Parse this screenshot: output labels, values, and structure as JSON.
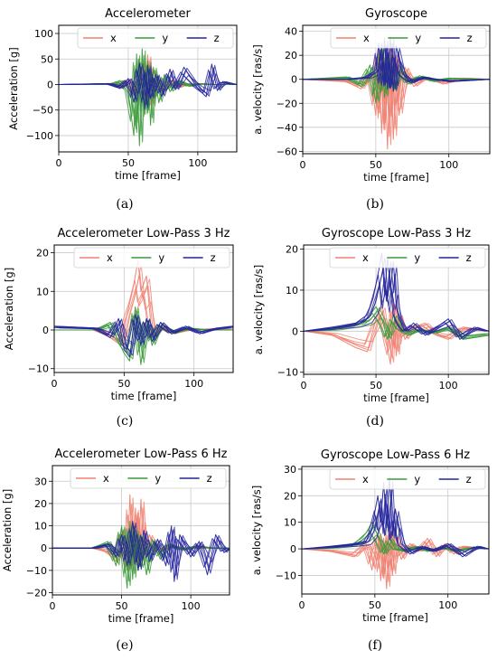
{
  "colors": {
    "x": "#F08070",
    "y": "#3A9A3A",
    "z": "#24249C"
  },
  "chart_data": [
    {
      "type": "line",
      "title": "Accelerometer",
      "xlabel": "time [frame]",
      "ylabel": "Acceleration [g]",
      "xlim": [
        0,
        128
      ],
      "ylim": [
        -132,
        116
      ],
      "xticks": [
        {
          "v": 0,
          "label": "0"
        },
        {
          "v": 50,
          "label": "50"
        },
        {
          "v": 100,
          "label": "100"
        }
      ],
      "yticks": [
        {
          "v": -100,
          "label": "−100"
        },
        {
          "v": -50,
          "label": "−50"
        },
        {
          "v": 0,
          "label": "0"
        },
        {
          "v": 50,
          "label": "50"
        },
        {
          "v": 100,
          "label": "100"
        }
      ],
      "grid": true,
      "legend": "top-right",
      "caption": "(a)",
      "series": [
        {
          "name": "x",
          "color": "#F08070",
          "x": [
            0,
            38,
            44,
            50,
            54,
            58,
            60,
            62,
            64,
            66,
            68,
            70,
            74,
            80,
            86,
            92,
            100,
            128
          ],
          "y": [
            0,
            0,
            -6,
            10,
            -22,
            32,
            45,
            -30,
            58,
            -40,
            25,
            12,
            -16,
            10,
            -6,
            2,
            0,
            0
          ]
        },
        {
          "name": "y",
          "color": "#3A9A3A",
          "x": [
            0,
            38,
            44,
            50,
            54,
            56,
            58,
            60,
            62,
            64,
            66,
            68,
            72,
            76,
            80,
            86,
            94,
            100,
            110,
            128
          ],
          "y": [
            0,
            0,
            8,
            -16,
            -100,
            60,
            -120,
            70,
            -58,
            46,
            -80,
            34,
            -36,
            20,
            -14,
            8,
            -4,
            2,
            0,
            0
          ]
        },
        {
          "name": "z",
          "color": "#24249C",
          "x": [
            0,
            36,
            44,
            50,
            54,
            58,
            62,
            64,
            66,
            70,
            74,
            80,
            84,
            90,
            100,
            106,
            110,
            114,
            118,
            128
          ],
          "y": [
            0,
            2,
            -8,
            12,
            -35,
            42,
            -48,
            38,
            -28,
            20,
            -24,
            30,
            -10,
            34,
            -8,
            -24,
            40,
            -12,
            6,
            0
          ]
        }
      ]
    },
    {
      "type": "line",
      "title": "Gyroscope",
      "xlabel": "time [frame]",
      "ylabel": "a. velocity [ras/s]",
      "xlim": [
        0,
        128
      ],
      "ylim": [
        -62,
        45
      ],
      "xticks": [
        {
          "v": 0,
          "label": "0"
        },
        {
          "v": 50,
          "label": "50"
        },
        {
          "v": 100,
          "label": "100"
        }
      ],
      "yticks": [
        {
          "v": -60,
          "label": "−60"
        },
        {
          "v": -40,
          "label": "−40"
        },
        {
          "v": -20,
          "label": "−20"
        },
        {
          "v": 0,
          "label": "0"
        },
        {
          "v": 20,
          "label": "20"
        },
        {
          "v": 40,
          "label": "40"
        }
      ],
      "grid": true,
      "legend": "top-right",
      "caption": "(b)",
      "series": [
        {
          "name": "x",
          "color": "#F08070",
          "x": [
            0,
            30,
            40,
            46,
            50,
            52,
            54,
            56,
            58,
            60,
            62,
            64,
            66,
            70,
            76,
            84,
            96,
            110,
            128
          ],
          "y": [
            0,
            -2,
            -8,
            5,
            -30,
            25,
            -45,
            18,
            -58,
            25,
            -50,
            20,
            -30,
            10,
            -6,
            2,
            -4,
            1,
            0
          ]
        },
        {
          "name": "y",
          "color": "#3A9A3A",
          "x": [
            0,
            30,
            40,
            46,
            50,
            54,
            56,
            58,
            62,
            66,
            72,
            80,
            90,
            100,
            128
          ],
          "y": [
            0,
            2,
            -6,
            12,
            -20,
            30,
            -15,
            22,
            -10,
            12,
            -4,
            3,
            -2,
            1,
            0
          ]
        },
        {
          "name": "z",
          "color": "#24249C",
          "x": [
            0,
            30,
            44,
            50,
            52,
            54,
            56,
            58,
            60,
            62,
            64,
            68,
            74,
            82,
            90,
            100,
            128
          ],
          "y": [
            0,
            0,
            2,
            8,
            30,
            -5,
            34,
            -8,
            36,
            -10,
            28,
            5,
            -3,
            2,
            0,
            -2,
            0
          ]
        }
      ]
    },
    {
      "type": "line",
      "title": "Accelerometer Low-Pass 3 Hz",
      "xlabel": "time [frame]",
      "ylabel": "Acceleration [g]",
      "xlim": [
        0,
        128
      ],
      "ylim": [
        -11,
        22
      ],
      "xticks": [
        {
          "v": 0,
          "label": "0"
        },
        {
          "v": 50,
          "label": "50"
        },
        {
          "v": 100,
          "label": "100"
        }
      ],
      "yticks": [
        {
          "v": -10,
          "label": "−10"
        },
        {
          "v": 0,
          "label": "0"
        },
        {
          "v": 10,
          "label": "10"
        },
        {
          "v": 20,
          "label": "20"
        }
      ],
      "grid": true,
      "legend": "top-right",
      "caption": "(c)",
      "series": [
        {
          "name": "x",
          "color": "#F08070",
          "x": [
            0,
            30,
            40,
            48,
            52,
            56,
            60,
            62,
            66,
            70,
            76,
            84,
            96,
            110,
            128
          ],
          "y": [
            0,
            0,
            -2,
            -4,
            4,
            10,
            18,
            10,
            14,
            -2,
            1,
            -1,
            0,
            0.3,
            0
          ]
        },
        {
          "name": "y",
          "color": "#3A9A3A",
          "x": [
            0,
            30,
            40,
            46,
            50,
            54,
            58,
            62,
            66,
            70,
            76,
            84,
            96,
            110,
            128
          ],
          "y": [
            0,
            0,
            2,
            -3,
            -6,
            -8,
            6,
            -9,
            3,
            -4,
            2,
            -1,
            0.5,
            0,
            0
          ]
        },
        {
          "name": "z",
          "color": "#24249C",
          "x": [
            0,
            30,
            40,
            46,
            50,
            54,
            58,
            62,
            66,
            70,
            76,
            84,
            94,
            104,
            116,
            128
          ],
          "y": [
            1,
            0.5,
            -2,
            3,
            -5,
            -7,
            4,
            -4,
            3,
            -3,
            2,
            -1,
            1,
            -1,
            0.5,
            1
          ]
        }
      ]
    },
    {
      "type": "line",
      "title": "Gyroscope Low-Pass 3 Hz",
      "xlabel": "time [frame]",
      "ylabel": "a. velocity [ras/s]",
      "xlim": [
        0,
        128
      ],
      "ylim": [
        -10.5,
        21
      ],
      "xticks": [
        {
          "v": 0,
          "label": "0"
        },
        {
          "v": 50,
          "label": "50"
        },
        {
          "v": 100,
          "label": "100"
        }
      ],
      "yticks": [
        {
          "v": -10,
          "label": "−10"
        },
        {
          "v": 0,
          "label": "0"
        },
        {
          "v": 10,
          "label": "10"
        },
        {
          "v": 20,
          "label": "20"
        }
      ],
      "grid": true,
      "legend": "top-right",
      "caption": "(d)",
      "series": [
        {
          "name": "x",
          "color": "#F08070",
          "x": [
            0,
            20,
            36,
            44,
            50,
            54,
            58,
            60,
            62,
            64,
            66,
            70,
            76,
            84,
            92,
            100,
            110,
            128
          ],
          "y": [
            0,
            -1,
            -4,
            -5,
            3,
            6,
            -4,
            -8,
            8,
            -6,
            4,
            -2,
            1,
            2,
            -1,
            -2,
            1,
            0
          ]
        },
        {
          "name": "y",
          "color": "#3A9A3A",
          "x": [
            0,
            20,
            36,
            44,
            50,
            54,
            58,
            62,
            66,
            72,
            80,
            90,
            100,
            110,
            128
          ],
          "y": [
            0,
            0.5,
            2,
            3,
            6,
            3,
            -2,
            4,
            1,
            -1,
            0.5,
            -0.5,
            1,
            -2,
            -1
          ]
        },
        {
          "name": "z",
          "color": "#24249C",
          "x": [
            0,
            20,
            36,
            44,
            48,
            52,
            54,
            56,
            58,
            60,
            62,
            64,
            66,
            70,
            76,
            84,
            92,
            100,
            108,
            118,
            128
          ],
          "y": [
            0,
            1,
            2,
            4,
            8,
            15,
            19,
            9,
            18,
            10,
            17,
            6,
            3,
            0,
            2,
            -1,
            1,
            3,
            -2,
            1,
            0
          ]
        }
      ]
    },
    {
      "type": "line",
      "title": "Accelerometer Low-Pass 6 Hz",
      "xlabel": "time [frame]",
      "ylabel": "Acceleration [g]",
      "xlim": [
        0,
        128
      ],
      "ylim": [
        -21,
        37
      ],
      "xticks": [
        {
          "v": 0,
          "label": "0"
        },
        {
          "v": 50,
          "label": "50"
        },
        {
          "v": 100,
          "label": "100"
        }
      ],
      "yticks": [
        {
          "v": -20,
          "label": "−20"
        },
        {
          "v": -10,
          "label": "−10"
        },
        {
          "v": 0,
          "label": "0"
        },
        {
          "v": 10,
          "label": "10"
        },
        {
          "v": 20,
          "label": "20"
        },
        {
          "v": 30,
          "label": "30"
        }
      ],
      "grid": true,
      "legend": "top-right",
      "caption": "(e)",
      "series": [
        {
          "name": "x",
          "color": "#F08070",
          "x": [
            0,
            30,
            40,
            46,
            50,
            54,
            56,
            58,
            60,
            62,
            64,
            66,
            70,
            76,
            84,
            96,
            110,
            128
          ],
          "y": [
            0,
            0,
            -2,
            -6,
            8,
            -10,
            24,
            -8,
            18,
            -10,
            22,
            -4,
            6,
            -2,
            1,
            0,
            0,
            0
          ]
        },
        {
          "name": "y",
          "color": "#3A9A3A",
          "x": [
            0,
            30,
            40,
            46,
            50,
            54,
            56,
            58,
            60,
            62,
            64,
            68,
            72,
            78,
            84,
            94,
            104,
            116,
            128
          ],
          "y": [
            0,
            0,
            3,
            -8,
            10,
            -18,
            12,
            -14,
            8,
            -10,
            6,
            -12,
            4,
            -5,
            2,
            -1,
            1,
            0,
            0
          ]
        },
        {
          "name": "z",
          "color": "#24249C",
          "x": [
            0,
            30,
            40,
            46,
            50,
            54,
            58,
            62,
            66,
            70,
            76,
            82,
            86,
            88,
            92,
            100,
            106,
            112,
            118,
            124,
            128
          ],
          "y": [
            0,
            0,
            2,
            -4,
            6,
            -8,
            12,
            -10,
            8,
            -6,
            4,
            -8,
            10,
            -15,
            6,
            -4,
            3,
            -12,
            6,
            -2,
            0
          ]
        }
      ]
    },
    {
      "type": "line",
      "title": "Gyroscope Low-Pass 6 Hz",
      "xlabel": "time [frame]",
      "ylabel": "a. velocity [ras/s]",
      "xlim": [
        0,
        128
      ],
      "ylim": [
        -17,
        31
      ],
      "xticks": [
        {
          "v": 0,
          "label": "0"
        },
        {
          "v": 50,
          "label": "50"
        },
        {
          "v": 100,
          "label": "100"
        }
      ],
      "yticks": [
        {
          "v": -10,
          "label": "−10"
        },
        {
          "v": 0,
          "label": "0"
        },
        {
          "v": 10,
          "label": "10"
        },
        {
          "v": 20,
          "label": "20"
        },
        {
          "v": 30,
          "label": "30"
        }
      ],
      "grid": true,
      "legend": "top-right",
      "caption": "(f)",
      "series": [
        {
          "name": "x",
          "color": "#F08070",
          "x": [
            0,
            20,
            36,
            44,
            48,
            52,
            54,
            56,
            58,
            60,
            62,
            64,
            68,
            74,
            80,
            86,
            92,
            98,
            104,
            110,
            128
          ],
          "y": [
            0,
            -1,
            -3,
            2,
            -8,
            6,
            -12,
            4,
            -15,
            8,
            -10,
            5,
            -4,
            2,
            -1,
            4,
            -3,
            2,
            -2,
            1,
            0
          ]
        },
        {
          "name": "y",
          "color": "#3A9A3A",
          "x": [
            0,
            20,
            36,
            44,
            48,
            52,
            56,
            60,
            64,
            70,
            78,
            86,
            96,
            106,
            116,
            128
          ],
          "y": [
            0,
            0.5,
            2,
            6,
            10,
            5,
            -2,
            4,
            0,
            -1,
            1,
            -1,
            0.5,
            -1,
            0.5,
            0
          ]
        },
        {
          "name": "z",
          "color": "#24249C",
          "x": [
            0,
            20,
            36,
            44,
            48,
            52,
            54,
            56,
            58,
            60,
            62,
            64,
            68,
            74,
            82,
            90,
            100,
            110,
            120,
            128
          ],
          "y": [
            0,
            1,
            2,
            3,
            8,
            20,
            10,
            25,
            8,
            27,
            5,
            15,
            2,
            -2,
            1,
            -1,
            2,
            -3,
            1,
            0
          ]
        }
      ]
    }
  ]
}
